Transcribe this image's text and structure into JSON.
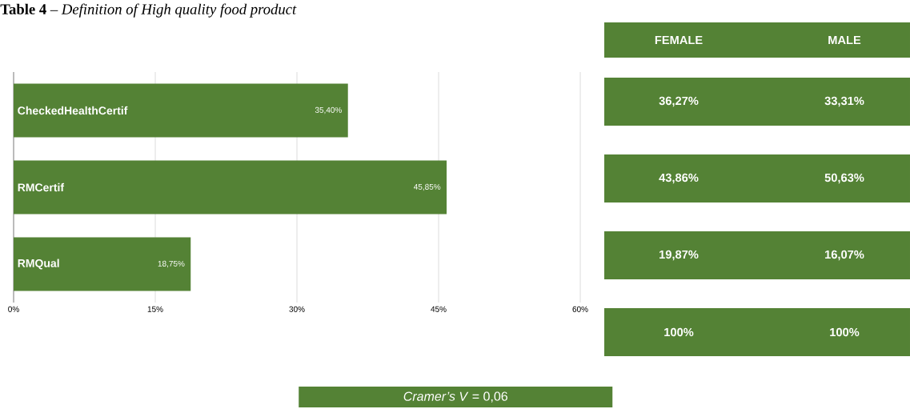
{
  "chart_data": [
    {
      "type": "bar",
      "title": "**Table 4** – *Definition of High quality food product*",
      "orientation": "horizontal",
      "categories": [
        "CheckedHealthCertif",
        "RMCertif",
        "RMQual"
      ],
      "values": [
        35.4,
        45.85,
        18.75
      ],
      "value_labels": [
        "35,40%",
        "45,85%",
        "18,75%"
      ],
      "color": "#548235",
      "xlim": [
        0,
        60
      ],
      "xticks": [
        {
          "value": 0,
          "label": "0%"
        },
        {
          "value": 15,
          "label": "15%"
        },
        {
          "value": 30,
          "label": "30%"
        },
        {
          "value": 45,
          "label": "45%"
        },
        {
          "value": 60,
          "label": "60%"
        }
      ],
      "grid": "x",
      "annotations": [
        "*Cramer’s V* = 0,06"
      ]
    },
    {
      "type": "other",
      "color": "#548235",
      "annotations": [
        "FEMALE",
        "MALE",
        "36,27%",
        "33,31%",
        "43,86%",
        "50,63%",
        "19,87%",
        "16,07%",
        "100%",
        "100%"
      ]
    }
  ]
}
